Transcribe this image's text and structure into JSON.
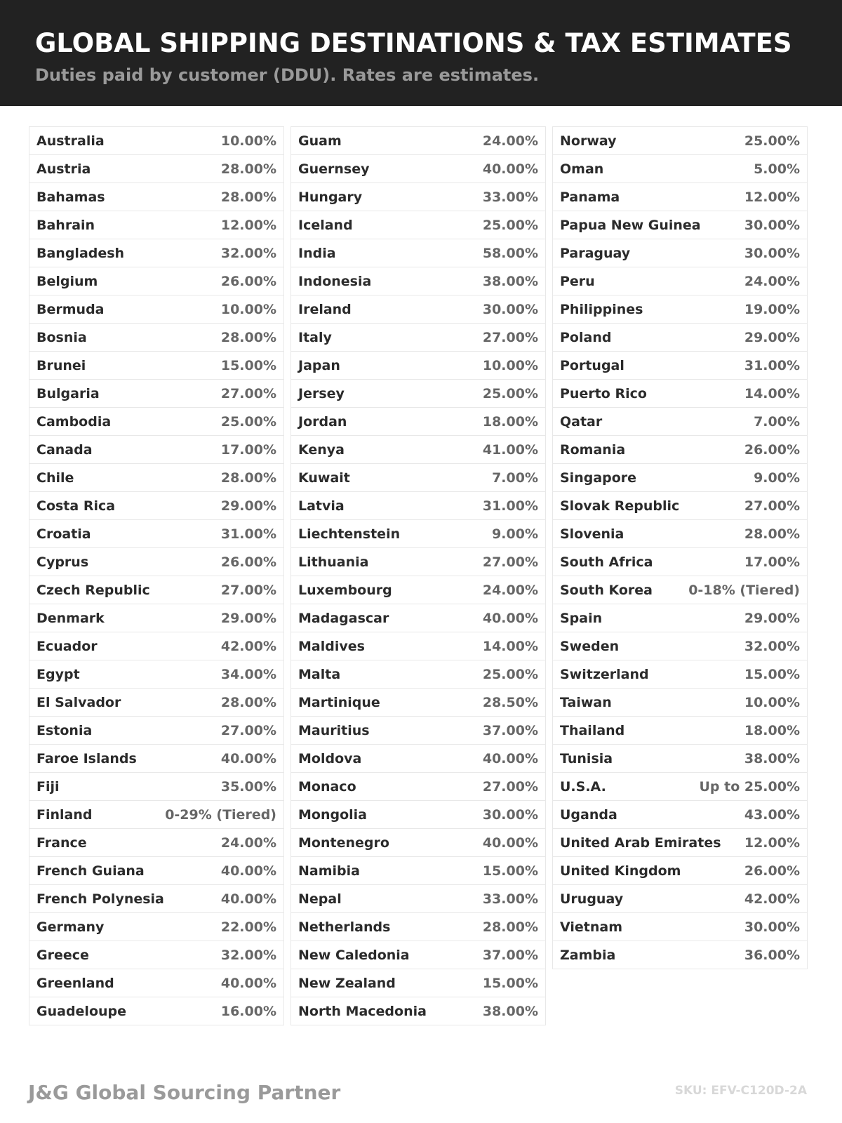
{
  "header": {
    "title": "GLOBAL SHIPPING DESTINATIONS & TAX ESTIMATES",
    "subtitle": "Duties paid by customer (DDU). Rates are estimates."
  },
  "columns": [
    [
      [
        "Australia",
        "10.00%"
      ],
      [
        "Austria",
        "28.00%"
      ],
      [
        "Bahamas",
        "28.00%"
      ],
      [
        "Bahrain",
        "12.00%"
      ],
      [
        "Bangladesh",
        "32.00%"
      ],
      [
        "Belgium",
        "26.00%"
      ],
      [
        "Bermuda",
        "10.00%"
      ],
      [
        "Bosnia",
        "28.00%"
      ],
      [
        "Brunei",
        "15.00%"
      ],
      [
        "Bulgaria",
        "27.00%"
      ],
      [
        "Cambodia",
        "25.00%"
      ],
      [
        "Canada",
        "17.00%"
      ],
      [
        "Chile",
        "28.00%"
      ],
      [
        "Costa Rica",
        "29.00%"
      ],
      [
        "Croatia",
        "31.00%"
      ],
      [
        "Cyprus",
        "26.00%"
      ],
      [
        "Czech Republic",
        "27.00%"
      ],
      [
        "Denmark",
        "29.00%"
      ],
      [
        "Ecuador",
        "42.00%"
      ],
      [
        "Egypt",
        "34.00%"
      ],
      [
        "El Salvador",
        "28.00%"
      ],
      [
        "Estonia",
        "27.00%"
      ],
      [
        "Faroe Islands",
        "40.00%"
      ],
      [
        "Fiji",
        "35.00%"
      ],
      [
        "Finland",
        "0-29% (Tiered)"
      ],
      [
        "France",
        "24.00%"
      ],
      [
        "French Guiana",
        "40.00%"
      ],
      [
        "French Polynesia",
        "40.00%"
      ],
      [
        "Germany",
        "22.00%"
      ],
      [
        "Greece",
        "32.00%"
      ],
      [
        "Greenland",
        "40.00%"
      ],
      [
        "Guadeloupe",
        "16.00%"
      ]
    ],
    [
      [
        "Guam",
        "24.00%"
      ],
      [
        "Guernsey",
        "40.00%"
      ],
      [
        "Hungary",
        "33.00%"
      ],
      [
        "Iceland",
        "25.00%"
      ],
      [
        "India",
        "58.00%"
      ],
      [
        "Indonesia",
        "38.00%"
      ],
      [
        "Ireland",
        "30.00%"
      ],
      [
        "Italy",
        "27.00%"
      ],
      [
        "Japan",
        "10.00%"
      ],
      [
        "Jersey",
        "25.00%"
      ],
      [
        "Jordan",
        "18.00%"
      ],
      [
        "Kenya",
        "41.00%"
      ],
      [
        "Kuwait",
        "7.00%"
      ],
      [
        "Latvia",
        "31.00%"
      ],
      [
        "Liechtenstein",
        "9.00%"
      ],
      [
        "Lithuania",
        "27.00%"
      ],
      [
        "Luxembourg",
        "24.00%"
      ],
      [
        "Madagascar",
        "40.00%"
      ],
      [
        "Maldives",
        "14.00%"
      ],
      [
        "Malta",
        "25.00%"
      ],
      [
        "Martinique",
        "28.50%"
      ],
      [
        "Mauritius",
        "37.00%"
      ],
      [
        "Moldova",
        "40.00%"
      ],
      [
        "Monaco",
        "27.00%"
      ],
      [
        "Mongolia",
        "30.00%"
      ],
      [
        "Montenegro",
        "40.00%"
      ],
      [
        "Namibia",
        "15.00%"
      ],
      [
        "Nepal",
        "33.00%"
      ],
      [
        "Netherlands",
        "28.00%"
      ],
      [
        "New Caledonia",
        "37.00%"
      ],
      [
        "New Zealand",
        "15.00%"
      ],
      [
        "North Macedonia",
        "38.00%"
      ]
    ],
    [
      [
        "Norway",
        "25.00%"
      ],
      [
        "Oman",
        "5.00%"
      ],
      [
        "Panama",
        "12.00%"
      ],
      [
        "Papua New Guinea",
        "30.00%"
      ],
      [
        "Paraguay",
        "30.00%"
      ],
      [
        "Peru",
        "24.00%"
      ],
      [
        "Philippines",
        "19.00%"
      ],
      [
        "Poland",
        "29.00%"
      ],
      [
        "Portugal",
        "31.00%"
      ],
      [
        "Puerto Rico",
        "14.00%"
      ],
      [
        "Qatar",
        "7.00%"
      ],
      [
        "Romania",
        "26.00%"
      ],
      [
        "Singapore",
        "9.00%"
      ],
      [
        "Slovak Republic",
        "27.00%"
      ],
      [
        "Slovenia",
        "28.00%"
      ],
      [
        "South Africa",
        "17.00%"
      ],
      [
        "South Korea",
        "0-18% (Tiered)"
      ],
      [
        "Spain",
        "29.00%"
      ],
      [
        "Sweden",
        "32.00%"
      ],
      [
        "Switzerland",
        "15.00%"
      ],
      [
        "Taiwan",
        "10.00%"
      ],
      [
        "Thailand",
        "18.00%"
      ],
      [
        "Tunisia",
        "38.00%"
      ],
      [
        "U.S.A.",
        "Up to 25.00%"
      ],
      [
        "Uganda",
        "43.00%"
      ],
      [
        "United Arab Emirates",
        "12.00%"
      ],
      [
        "United Kingdom",
        "26.00%"
      ],
      [
        "Uruguay",
        "42.00%"
      ],
      [
        "Vietnam",
        "30.00%"
      ],
      [
        "Zambia",
        "36.00%"
      ]
    ]
  ],
  "footer": {
    "brand": "J&G Global Sourcing Partner",
    "sku": "SKU: EFV-C120D-2A"
  }
}
